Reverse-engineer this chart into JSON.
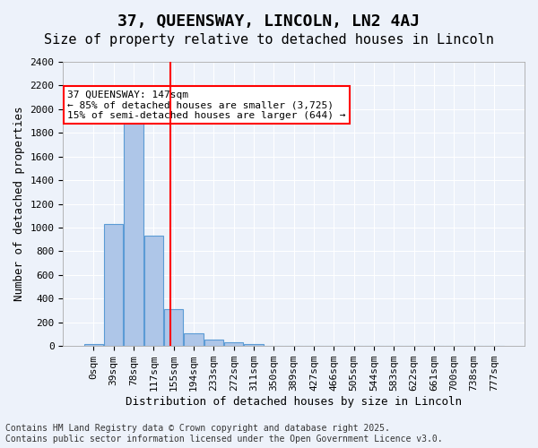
{
  "title": "37, QUEENSWAY, LINCOLN, LN2 4AJ",
  "subtitle": "Size of property relative to detached houses in Lincoln",
  "xlabel": "Distribution of detached houses by size in Lincoln",
  "ylabel": "Number of detached properties",
  "annotation_title": "37 QUEENSWAY: 147sqm",
  "annotation_line1": "← 85% of detached houses are smaller (3,725)",
  "annotation_line2": "15% of semi-detached houses are larger (644) →",
  "footer1": "Contains HM Land Registry data © Crown copyright and database right 2025.",
  "footer2": "Contains public sector information licensed under the Open Government Licence v3.0.",
  "bin_labels": [
    "0sqm",
    "39sqm",
    "78sqm",
    "117sqm",
    "155sqm",
    "194sqm",
    "233sqm",
    "272sqm",
    "311sqm",
    "350sqm",
    "389sqm",
    "427sqm",
    "466sqm",
    "505sqm",
    "544sqm",
    "583sqm",
    "622sqm",
    "661sqm",
    "700sqm",
    "738sqm",
    "777sqm"
  ],
  "bar_values": [
    15,
    1030,
    1920,
    930,
    310,
    105,
    55,
    35,
    15,
    5,
    2,
    1,
    1,
    0,
    0,
    0,
    0,
    0,
    0,
    0,
    0
  ],
  "bar_color": "#aec6e8",
  "bar_edge_color": "#5b9bd5",
  "redline_x": 3.85,
  "ylim": [
    0,
    2400
  ],
  "yticks": [
    0,
    200,
    400,
    600,
    800,
    1000,
    1200,
    1400,
    1600,
    1800,
    2000,
    2200,
    2400
  ],
  "background_color": "#edf2fa",
  "plot_bg_color": "#edf2fa",
  "grid_color": "#ffffff",
  "title_fontsize": 13,
  "subtitle_fontsize": 11,
  "axis_label_fontsize": 9,
  "tick_fontsize": 8,
  "annotation_fontsize": 8,
  "footer_fontsize": 7
}
